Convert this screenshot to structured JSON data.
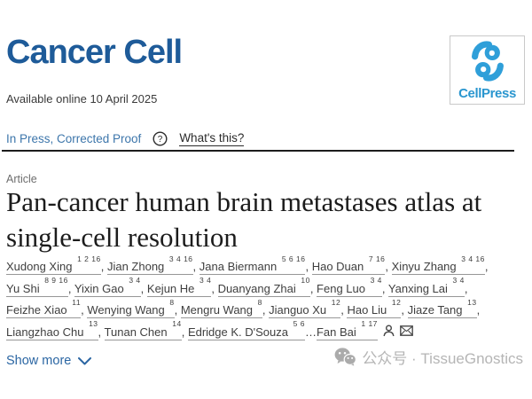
{
  "journal": {
    "title": "Cancer Cell"
  },
  "publisher": {
    "name": "CellPress",
    "logo_blue": "#2f9fd9"
  },
  "availability": {
    "text": "Available online 10 April 2025"
  },
  "status": {
    "label": "In Press, Corrected Proof",
    "help_icon": "question-mark-circle",
    "help_link": "What's this?"
  },
  "article": {
    "category": "Article",
    "title": "Pan-cancer human brain metastases atlas at single-cell resolution"
  },
  "authors": {
    "list": [
      {
        "name": "Xudong Xing",
        "sup": "1 2 16",
        "sep": ", "
      },
      {
        "name": "Jian Zhong",
        "sup": "3 4 16",
        "sep": ", "
      },
      {
        "name": "Jana Biermann",
        "sup": "5 6 16",
        "sep": ", "
      },
      {
        "name": "Hao Duan",
        "sup": "7 16",
        "sep": ", "
      },
      {
        "name": "Xinyu Zhang",
        "sup": "3 4 16",
        "sep": ", "
      },
      {
        "name": "Yu Shi",
        "sup": "8 9 16",
        "sep": ", "
      },
      {
        "name": "Yixin Gao",
        "sup": "3 4",
        "sep": ", "
      },
      {
        "name": "Kejun He",
        "sup": "3 4",
        "sep": ", "
      },
      {
        "name": "Duanyang Zhai",
        "sup": "10",
        "sep": ", "
      },
      {
        "name": "Feng Luo",
        "sup": "3 4",
        "sep": ", "
      },
      {
        "name": "Yanxing Lai",
        "sup": "3 4",
        "sep": ", "
      },
      {
        "name": "Feizhe Xiao",
        "sup": "11",
        "sep": ", "
      },
      {
        "name": "Wenying Wang",
        "sup": "8",
        "sep": ", "
      },
      {
        "name": "Mengru Wang",
        "sup": "8",
        "sep": ", "
      },
      {
        "name": "Jianguo Xu",
        "sup": "12",
        "sep": ", "
      },
      {
        "name": "Hao Liu",
        "sup": "12",
        "sep": ", "
      },
      {
        "name": "Jiaze Tang",
        "sup": "13",
        "sep": ", "
      },
      {
        "name": "Liangzhao Chu",
        "sup": "13",
        "sep": ", "
      },
      {
        "name": "Tunan Chen",
        "sup": "14",
        "sep": ", "
      },
      {
        "name": "Edridge K. D'Souza",
        "sup": "5 6",
        "sep": "…"
      },
      {
        "name": "Fan Bai",
        "sup": "1 17",
        "sep": ""
      }
    ],
    "icons": [
      "person-icon",
      "mail-icon"
    ]
  },
  "actions": {
    "show_more": "Show more"
  },
  "watermark": {
    "text": "公众号 · TissueGnostics"
  },
  "colors": {
    "journal_blue": "#1e5b99",
    "status_blue": "#3d76ab",
    "link_blue": "#2b66a3",
    "cellpress_blue": "#2f9fd9",
    "watermark_gray": "#b5b5b5"
  }
}
